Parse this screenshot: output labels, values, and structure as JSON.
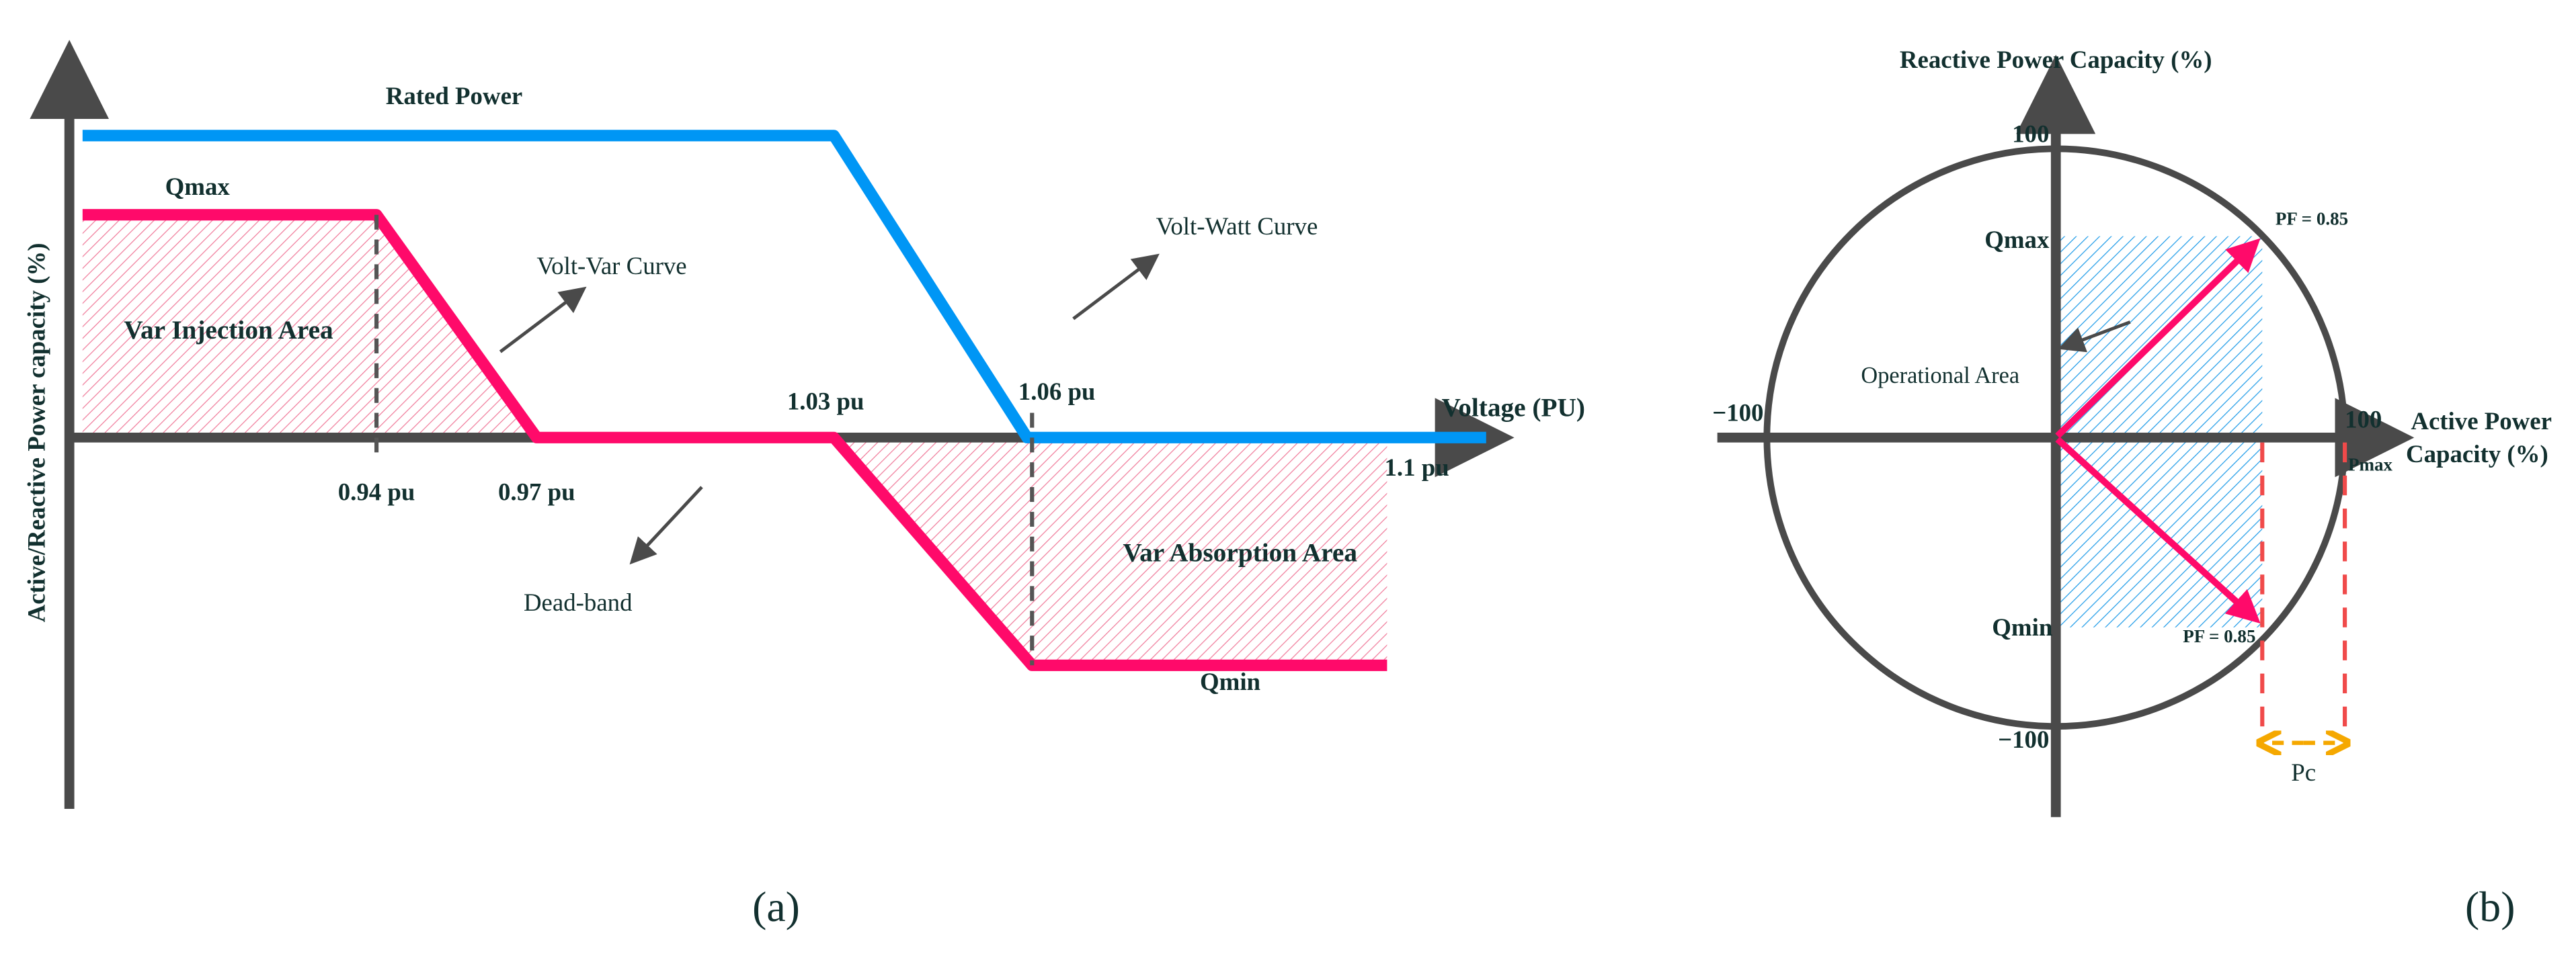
{
  "panel_a": {
    "caption": "(a)",
    "y_axis_label": "Active/Reactive Power capacity (%)",
    "x_axis_label": "Voltage (PU)",
    "rated_power": "Rated Power",
    "qmax": "Qmax",
    "qmin": "Qmin",
    "volt_var_curve": "Volt-Var Curve",
    "volt_watt_curve": "Volt-Watt Curve",
    "var_injection_area": "Var Injection Area",
    "var_absorption_area": "Var Absorption Area",
    "dead_band": "Dead-band",
    "ticks": [
      "0.94 pu",
      "0.97 pu",
      "1.03 pu",
      "1.06 pu",
      "1.1 pu"
    ],
    "colors": {
      "volt_watt": "#0096f5",
      "volt_var": "#ff0a6a",
      "axis": "#4a4a4a"
    }
  },
  "panel_b": {
    "caption": "(b)",
    "y_axis_label": "Reactive Power Capacity (%)",
    "x_axis_label_line1": "Active Power",
    "x_axis_label_line2": "Capacity (%)",
    "y_top": "100",
    "y_bottom": "−100",
    "x_left": "−100",
    "x_right": "100",
    "qmax": "Qmax",
    "qmin": "Qmin",
    "pmax": "Pmax",
    "pf_top": "PF = 0.85",
    "pf_bottom": "PF = 0.85",
    "operational_area": "Operational Area",
    "pc": "Pc",
    "colors": {
      "operational_area": "#1e9be8",
      "pf_vector": "#ff0a6a",
      "pc_arrow": "#f5a800",
      "pmax_dash": "#f04a4a"
    }
  }
}
